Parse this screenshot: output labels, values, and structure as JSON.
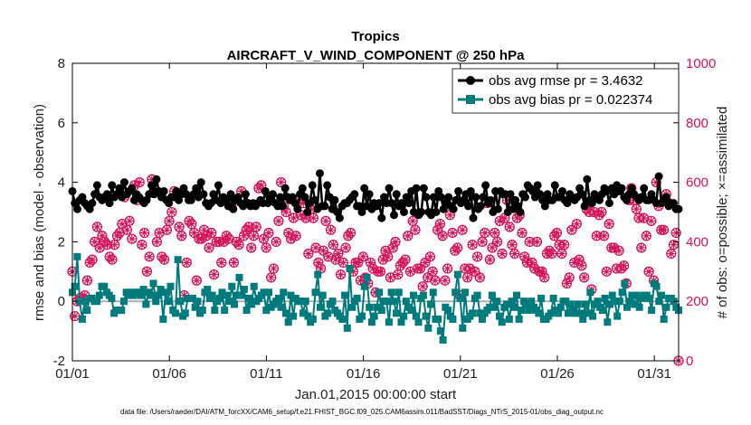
{
  "chart_data": {
    "type": "line",
    "title": "Tropics",
    "subtitle": "AIRCRAFT_V_WIND_COMPONENT @ 250 hPa",
    "xlabel": "Jan.01,2015 00:00:00 start",
    "ylabel": "rmse and bias (model - observation)",
    "y2label": "# of obs: o=possible; ×=assimilated",
    "ylim": [
      -2,
      8
    ],
    "y2lim": [
      0,
      1000
    ],
    "xlim": [
      1,
      32.25
    ],
    "yticks": [
      "-2",
      "0",
      "2",
      "4",
      "6",
      "8"
    ],
    "y2ticks": [
      "0",
      "200",
      "400",
      "600",
      "800",
      "1000"
    ],
    "xticks": [
      {
        "x": 1,
        "label": "01/01"
      },
      {
        "x": 6,
        "label": "01/06"
      },
      {
        "x": 11,
        "label": "01/11"
      },
      {
        "x": 16,
        "label": "01/16"
      },
      {
        "x": 21,
        "label": "01/21"
      },
      {
        "x": 26,
        "label": "01/26"
      },
      {
        "x": 31,
        "label": "01/31"
      }
    ],
    "zero_line": 0,
    "legend_position": "top-right",
    "colors": {
      "rmse": "#000000",
      "bias": "#007b7b",
      "counts": "#d4145a",
      "zero": "#b0b0b0"
    },
    "series": [
      {
        "name": "obs avg rmse pr = 3.4632",
        "axis": "left",
        "values": [
          3.7,
          3.3,
          3.1,
          3.4,
          3.5,
          3.3,
          3.2,
          3.1,
          3.3,
          3.6,
          3.9,
          3.5,
          3.4,
          3.5,
          3.6,
          3.3,
          3.9,
          3.5,
          3.6,
          3.8,
          3.5,
          4.0,
          3.6,
          3.7,
          3.8,
          3.4,
          3.6,
          3.5,
          3.4,
          3.3,
          3.4,
          3.6,
          3.9,
          3.6,
          4.1,
          3.7,
          3.5,
          3.7,
          3.4,
          3.3,
          3.5,
          3.5,
          3.7,
          3.4,
          3.6,
          3.8,
          3.6,
          3.4,
          3.4,
          3.6,
          3.8,
          3.5,
          4.0,
          3.6,
          3.3,
          3.2,
          3.3,
          3.6,
          3.4,
          3.9,
          3.3,
          3.5,
          3.4,
          3.2,
          3.6,
          3.1,
          3.4,
          3.5,
          3.3,
          3.2,
          3.6,
          3.3,
          3.2,
          3.3,
          3.2,
          3.3,
          3.4,
          3.3,
          3.7,
          3.3,
          3.5,
          3.6,
          3.3,
          3.2,
          3.5,
          3.2,
          3.8,
          3.5,
          3.4,
          3.5,
          3.3,
          3.1,
          3.6,
          3.8,
          3.5,
          3.0,
          3.3,
          3.9,
          3.4,
          3.1,
          4.3,
          3.2,
          3.2,
          3.9,
          3.5,
          3.1,
          3.4,
          3.0,
          2.8,
          3.2,
          3.3,
          3.3,
          3.4,
          3.5,
          3.6,
          3.2,
          3.2,
          3.0,
          3.8,
          3.2,
          3.6,
          3.1,
          3.3,
          3.2,
          3.3,
          2.8,
          3.5,
          3.3,
          3.8,
          3.3,
          2.9,
          3.6,
          3.2,
          3.3,
          3.0,
          3.5,
          3.3,
          3.7,
          3.0,
          3.8,
          2.9,
          3.0,
          3.8,
          3.5,
          3.0,
          2.9,
          3.5,
          3.0,
          3.7,
          3.5,
          3.1,
          3.3,
          3.5,
          3.2,
          3.1,
          3.4,
          3.7,
          3.3,
          3.4,
          3.6,
          3.2,
          3.7,
          2.8,
          3.5,
          3.1,
          3.2,
          3.5,
          3.9,
          3.3,
          3.4,
          3.0,
          3.7,
          3.1,
          3.7,
          3.6,
          3.6,
          3.0,
          3.6,
          3.1,
          3.4,
          3.2,
          3.0,
          3.6,
          3.5,
          3.9,
          3.8,
          3.7,
          3.5,
          3.9,
          3.6,
          3.4,
          3.2,
          3.6,
          3.4,
          3.4,
          3.9,
          3.5,
          3.5,
          3.7,
          3.4,
          3.3,
          3.6,
          3.5,
          3.4,
          3.5,
          3.8,
          3.6,
          3.2,
          4.1,
          3.4,
          3.3,
          3.6,
          3.5,
          3.4,
          3.6,
          3.8,
          3.7,
          3.3,
          3.8,
          3.6,
          3.9,
          3.7,
          3.8,
          3.5,
          3.4,
          3.6,
          3.8,
          3.6,
          3.5,
          3.4,
          3.5,
          3.8,
          3.4,
          3.4,
          3.6,
          3.4,
          3.3,
          4.2,
          3.3,
          3.4,
          3.5,
          3.2,
          3.3,
          3.3,
          3.1,
          3.1
        ]
      },
      {
        "name": "obs avg bias pr = 0.022374",
        "axis": "left",
        "values": [
          0.3,
          0.5,
          1.5,
          0.0,
          -0.6,
          0.0,
          -0.3,
          0.1,
          0.1,
          0.0,
          0.0,
          0.2,
          0.5,
          0.5,
          0.3,
          0.2,
          0.1,
          -0.4,
          -0.3,
          -0.3,
          -0.3,
          0.0,
          0.3,
          0.2,
          0.3,
          0.2,
          0.3,
          0.3,
          0.2,
          0.4,
          -0.1,
          0.3,
          0.2,
          0.6,
          0.0,
          0.2,
          0.4,
          -0.6,
          0.3,
          0.0,
          0.5,
          -0.3,
          -0.4,
          1.4,
          0.0,
          -0.5,
          -0.4,
          0.1,
          0.1,
          0.1,
          -0.2,
          0.0,
          -0.4,
          -0.3,
          0.3,
          0.4,
          0.1,
          0.2,
          -0.3,
          0.0,
          0.1,
          0.3,
          -0.3,
          0.2,
          0.0,
          0.5,
          -0.1,
          0.2,
          0.8,
          0.2,
          0.4,
          -0.3,
          0.1,
          -0.1,
          0.5,
          0.0,
          0.1,
          0.2,
          0.3,
          -0.3,
          0.3,
          -0.2,
          -0.1,
          0.0,
          0.1,
          -0.2,
          0.3,
          -0.4,
          -0.7,
          0.2,
          -0.5,
          0.1,
          0.0,
          0.0,
          -0.4,
          0.0,
          -0.5,
          -0.7,
          -0.6,
          0.3,
          0.9,
          -0.2,
          0.2,
          -0.5,
          -0.4,
          -0.1,
          0.0,
          -0.3,
          -0.4,
          -0.5,
          -0.6,
          0.2,
          -0.9,
          1.1,
          -0.2,
          0.0,
          0.1,
          -0.6,
          -0.5,
          0.5,
          0.8,
          -0.2,
          -0.7,
          -0.5,
          -0.2,
          0.3,
          -0.3,
          0.0,
          0.0,
          -0.7,
          0.3,
          0.0,
          -0.4,
          0.3,
          -0.7,
          -0.5,
          0.0,
          -0.2,
          -0.3,
          0.2,
          -0.5,
          -0.7,
          0.1,
          0.2,
          -0.5,
          -0.9,
          -0.1,
          0.3,
          -0.6,
          -0.6,
          -1.0,
          -1.3,
          -0.2,
          -0.3,
          -0.5,
          -0.6,
          0.3,
          0.9,
          0.1,
          -0.9,
          0.3,
          -0.6,
          -0.5,
          -0.4,
          0.1,
          0.2,
          -0.4,
          -0.6,
          -0.4,
          -0.3,
          -0.2,
          0.2,
          -0.2,
          0.0,
          -0.5,
          -0.7,
          -0.2,
          -0.1,
          -0.6,
          0.0,
          -0.2,
          0.2,
          -0.6,
          -0.3,
          0.0,
          -0.1,
          -0.3,
          0.0,
          -0.2,
          -0.3,
          -0.4,
          0.1,
          -0.6,
          -0.6,
          -0.5,
          -0.4,
          0.1,
          -0.3,
          -0.4,
          -0.2,
          0.0,
          0.0,
          -0.4,
          -0.1,
          -0.3,
          -0.4,
          -0.1,
          -0.4,
          -0.6,
          -0.1,
          -0.4,
          0.3,
          -0.5,
          -0.1,
          0.0,
          -0.2,
          -0.3,
          0.1,
          -0.7,
          -0.1,
          0.2,
          0.0,
          -0.5,
          0.0,
          0.3,
          0.6,
          -0.2,
          0.0,
          0.2,
          -0.1,
          0.2,
          -0.2,
          0.1,
          0.2,
          0.2,
          0.1,
          -0.3,
          0.6,
          0.5,
          0.0,
          0.2,
          -0.6,
          -0.2,
          0.1,
          0.1,
          0.0,
          -0.2,
          -0.3
        ]
      },
      {
        "name": "# of obs possible (o) / assimilated (×)",
        "axis": "right",
        "values": [
          300,
          150,
          200,
          210,
          210,
          220,
          270,
          330,
          340,
          400,
          450,
          380,
          420,
          400,
          390,
          350,
          340,
          390,
          420,
          430,
          460,
          550,
          440,
          470,
          410,
          590,
          540,
          600,
          390,
          430,
          300,
          350,
          610,
          580,
          400,
          430,
          350,
          340,
          440,
          470,
          500,
          570,
          560,
          450,
          420,
          220,
          330,
          470,
          460,
          430,
          270,
          410,
          410,
          440,
          420,
          380,
          430,
          290,
          400,
          400,
          330,
          400,
          420,
          410,
          520,
          330,
          400,
          390,
          570,
          420,
          440,
          450,
          380,
          420,
          450,
          580,
          590,
          410,
          380,
          430,
          280,
          310,
          400,
          470,
          600,
          520,
          500,
          430,
          410,
          480,
          420,
          540,
          490,
          530,
          480,
          360,
          510,
          480,
          380,
          330,
          310,
          370,
          470,
          350,
          440,
          390,
          340,
          360,
          290,
          330,
          380,
          420,
          430,
          300,
          330,
          330,
          270,
          350,
          280,
          260,
          330,
          310,
          230,
          300,
          300,
          340,
          370,
          350,
          280,
          380,
          400,
          290,
          320,
          330,
          340,
          420,
          300,
          470,
          440,
          310,
          310,
          250,
          330,
          280,
          350,
          300,
          270,
          440,
          460,
          420,
          270,
          310,
          490,
          430,
          370,
          380,
          220,
          440,
          310,
          280,
          310,
          390,
          300,
          350,
          280,
          400,
          430,
          530,
          340,
          380,
          430,
          400,
          470,
          360,
          480,
          540,
          450,
          390,
          360,
          480,
          490,
          430,
          350,
          330,
          400,
          330,
          310,
          400,
          300,
          300,
          280,
          360,
          370,
          360,
          420,
          430,
          390,
          360,
          390,
          260,
          280,
          440,
          330,
          460,
          340,
          320,
          280,
          510,
          500,
          240,
          500,
          420,
          490,
          500,
          420,
          300,
          460,
          380,
          380,
          310,
          370,
          310,
          320,
          260,
          540,
          580,
          540,
          510,
          480,
          380,
          480,
          420,
          300,
          470,
          270,
          600,
          520,
          440,
          440,
          560,
          530,
          360,
          390,
          430,
          0
        ]
      }
    ]
  },
  "footer": "data file: /Users/raeder/DAI/ATM_forcXX/CAM6_setup/f.e21.FHIST_BGC.f09_025.CAM6assim.011/BadSST/Diags_NTrS_2015-01/obs_diag_output.nc"
}
